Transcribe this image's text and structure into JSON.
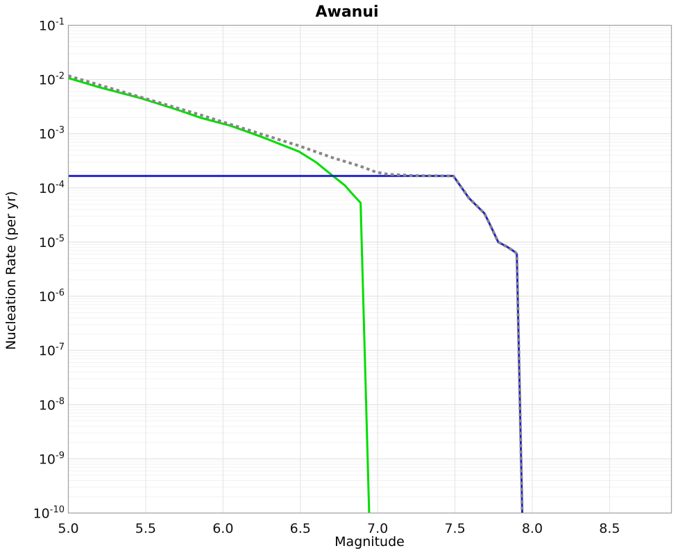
{
  "chart": {
    "title": "Awanui",
    "xlabel": "Magnitude",
    "ylabel": "Nucleation Rate (per yr)"
  },
  "chart_data": {
    "type": "line",
    "title": "Awanui",
    "xlabel": "Magnitude",
    "ylabel": "Nucleation Rate (per yr)",
    "x_axis": {
      "min": 5.0,
      "max": 8.9,
      "ticks": [
        5.0,
        5.5,
        6.0,
        6.5,
        7.0,
        7.5,
        8.0,
        8.5
      ],
      "tick_labels": [
        "5.0",
        "5.5",
        "6.0",
        "6.5",
        "7.0",
        "7.5",
        "8.0",
        "8.5"
      ]
    },
    "y_axis": {
      "scale": "log",
      "min": 1e-10,
      "max": 0.1,
      "tick_exponents": [
        -1,
        -2,
        -3,
        -4,
        -5,
        -6,
        -7,
        -8,
        -9,
        -10
      ]
    },
    "grid": {
      "major": true,
      "minor": true
    },
    "legend": "none",
    "colors": {
      "background": "#ffffff",
      "axis_frame": "#a3a3a3",
      "grid_major": "#dddddd",
      "grid_minor": "#f2f2f2",
      "grid_vertical": "#e2e2e2",
      "green_line": "#00dd00",
      "blue_line": "#2222cc",
      "gray_dotted": "#878787"
    },
    "series": [
      {
        "name": "green-solid-curve",
        "color": "#00dd00",
        "style": "solid",
        "width": 3,
        "points": [
          [
            5.0,
            0.0106
          ],
          [
            5.2,
            0.0072
          ],
          [
            5.46,
            0.0046
          ],
          [
            5.7,
            0.0028
          ],
          [
            5.86,
            0.00195
          ],
          [
            6.05,
            0.0014
          ],
          [
            6.26,
            0.00085
          ],
          [
            6.49,
            0.00047
          ],
          [
            6.6,
            0.0003
          ],
          [
            6.71,
            0.000167
          ],
          [
            6.79,
            0.00011
          ],
          [
            6.83,
            8.1e-05
          ],
          [
            6.89,
            5.3e-05
          ],
          [
            6.945,
            1e-10
          ]
        ]
      },
      {
        "name": "blue-solid-line",
        "color": "#2222cc",
        "style": "solid",
        "width": 3,
        "points": [
          [
            5.0,
            0.000166
          ],
          [
            7.49,
            0.000166
          ],
          [
            7.59,
            6.5e-05
          ],
          [
            7.69,
            3.4e-05
          ],
          [
            7.72,
            2.3e-05
          ],
          [
            7.78,
            1e-05
          ],
          [
            7.84,
            8.1e-06
          ],
          [
            7.89,
            6.5e-06
          ],
          [
            7.9,
            6e-06
          ],
          [
            7.935,
            1e-10
          ]
        ]
      },
      {
        "name": "gray-dotted-line",
        "color": "#878787",
        "style": "dotted",
        "width": 4,
        "points": [
          [
            5.0,
            0.0117
          ],
          [
            5.46,
            0.0048
          ],
          [
            5.86,
            0.0022
          ],
          [
            6.26,
            0.00096
          ],
          [
            6.49,
            0.0006
          ],
          [
            6.71,
            0.00036
          ],
          [
            6.89,
            0.00025
          ],
          [
            6.99,
            0.000195
          ],
          [
            7.07,
            0.000178
          ],
          [
            7.25,
            0.000168
          ],
          [
            7.49,
            0.000166
          ],
          [
            7.59,
            6.5e-05
          ],
          [
            7.69,
            3.4e-05
          ],
          [
            7.72,
            2.3e-05
          ],
          [
            7.78,
            1e-05
          ],
          [
            7.84,
            8.1e-06
          ],
          [
            7.89,
            6.5e-06
          ],
          [
            7.9,
            6e-06
          ],
          [
            7.935,
            1e-10
          ]
        ]
      }
    ]
  }
}
